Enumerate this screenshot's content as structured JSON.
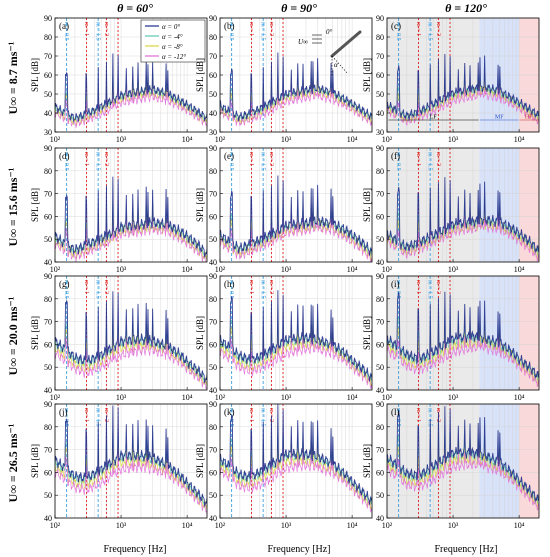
{
  "figure": {
    "column_titles": [
      "θ = 60°",
      "θ = 90°",
      "θ = 120°"
    ],
    "row_labels": [
      "U∞ = 8.7 ms⁻¹",
      "U∞ = 15.6 ms⁻¹",
      "U∞ = 20.0 ms⁻¹",
      "U∞ = 26.5 ms⁻¹"
    ],
    "panel_labels": [
      "(a)",
      "(b)",
      "(c)",
      "(d)",
      "(e)",
      "(f)",
      "(g)",
      "(h)",
      "(i)",
      "(j)",
      "(k)",
      "(l)"
    ],
    "ylabel": "SPL [dB]",
    "xlabel": "Frequency [Hz]",
    "x_tick_labels": [
      "10²",
      "10³",
      "10⁴"
    ],
    "harmonic_labels": {
      "half": "m = 0.5",
      "one": "m = 1",
      "onehalf": "m = 1.5",
      "two": "m = 2"
    },
    "region_labels": [
      "LF",
      "MF",
      "HF"
    ],
    "inset": {
      "freestream": "U∞",
      "zero_angle": "0°",
      "angle": "α"
    }
  },
  "colors": {
    "alpha_0": "#1f2d8a",
    "alpha_m4": "#58c7a8",
    "alpha_m8": "#d8d43a",
    "alpha_m12": "#e06ad8",
    "half_harmonic": "#3c9ee0",
    "harmonic": "#e02020",
    "lf_region": "#d9d9d9",
    "mf_region": "#c8d6f5",
    "hf_region": "#f7c9c9"
  },
  "chart_data": {
    "type": "line",
    "x_scale": "log",
    "xlim": [
      100,
      20000
    ],
    "x_ticks": [
      100,
      1000,
      10000
    ],
    "legend": {
      "placement": "top-right of panel (a)",
      "entries": [
        "α = 0°",
        "α = -4°",
        "α = -8°",
        "α = -12°"
      ]
    },
    "grid": true,
    "rows": [
      {
        "label": "U∞ = 8.7 ms⁻¹",
        "ylim": [
          30,
          90
        ],
        "y_ticks": [
          30,
          40,
          50,
          60,
          70,
          80,
          90
        ],
        "harmonics_hz": {
          "m = 0.5": 150,
          "m = 1": 300,
          "m = 1.5": 450,
          "m = 2": 600
        },
        "spike_base_hz": 150
      },
      {
        "label": "U∞ = 15.6 ms⁻¹",
        "ylim": [
          40,
          90
        ],
        "y_ticks": [
          40,
          50,
          60,
          70,
          80,
          90
        ],
        "harmonics_hz": {
          "m = 0.5": 150,
          "m = 1": 300,
          "m = 1.5": 450,
          "m = 2": 600
        },
        "spike_base_hz": 150
      },
      {
        "label": "U∞ = 20.0 ms⁻¹",
        "ylim": [
          40,
          90
        ],
        "y_ticks": [
          40,
          50,
          60,
          70,
          80,
          90
        ],
        "harmonics_hz": {
          "m = 0.5": 150,
          "m = 1": 300,
          "m = 1.5": 450,
          "m = 2": 600
        },
        "spike_base_hz": 150
      },
      {
        "label": "U∞ = 26.5 ms⁻¹",
        "ylim": [
          40,
          90
        ],
        "y_ticks": [
          40,
          50,
          60,
          70,
          80,
          90
        ],
        "harmonics_hz": {
          "m = 0.5": 150,
          "m = 1": 300,
          "m = 1.5": 450,
          "m = 2": 600
        },
        "spike_base_hz": 150
      }
    ],
    "series": [
      {
        "name": "α = 0°",
        "color": "#1f2d8a",
        "rows": [
          {
            "x": [
              100,
              150,
              200,
              300,
              500,
              800,
              1000,
              2000,
              3000,
              5000,
              8000,
              10000,
              15000,
              20000
            ],
            "y": [
              44,
              40,
              38,
              40,
              44,
              48,
              50,
              52,
              53,
              51,
              47,
              45,
              41,
              38
            ]
          },
          {
            "x": [
              100,
              150,
              200,
              300,
              500,
              800,
              1000,
              2000,
              3000,
              5000,
              8000,
              10000,
              15000,
              20000
            ],
            "y": [
              52,
              48,
              46,
              48,
              51,
              54,
              56,
              57,
              58,
              57,
              54,
              52,
              48,
              44
            ]
          },
          {
            "x": [
              100,
              150,
              200,
              300,
              500,
              800,
              1000,
              2000,
              3000,
              5000,
              8000,
              10000,
              15000,
              20000
            ],
            "y": [
              62,
              58,
              55,
              53,
              56,
              60,
              62,
              63,
              62,
              60,
              56,
              53,
              49,
              45
            ]
          },
          {
            "x": [
              100,
              150,
              200,
              300,
              500,
              800,
              1000,
              2000,
              3000,
              5000,
              8000,
              10000,
              15000,
              20000
            ],
            "y": [
              66,
              62,
              59,
              58,
              62,
              66,
              68,
              68,
              67,
              64,
              59,
              56,
              51,
              47
            ]
          }
        ]
      },
      {
        "name": "α = -4°",
        "color": "#58c7a8",
        "rows": [
          {
            "x": [
              100,
              150,
              200,
              300,
              500,
              800,
              1000,
              2000,
              3000,
              5000,
              8000,
              10000,
              15000,
              20000
            ],
            "y": [
              43,
              39,
              37,
              39,
              43,
              47,
              49,
              51,
              52,
              50,
              46,
              44,
              40,
              37
            ]
          },
          {
            "x": [
              100,
              150,
              200,
              300,
              500,
              800,
              1000,
              2000,
              3000,
              5000,
              8000,
              10000,
              15000,
              20000
            ],
            "y": [
              51,
              47,
              45,
              47,
              50,
              53,
              55,
              56,
              57,
              56,
              53,
              51,
              47,
              43
            ]
          },
          {
            "x": [
              100,
              150,
              200,
              300,
              500,
              800,
              1000,
              2000,
              3000,
              5000,
              8000,
              10000,
              15000,
              20000
            ],
            "y": [
              61,
              57,
              54,
              52,
              55,
              59,
              61,
              62,
              61,
              59,
              55,
              52,
              48,
              44
            ]
          },
          {
            "x": [
              100,
              150,
              200,
              300,
              500,
              800,
              1000,
              2000,
              3000,
              5000,
              8000,
              10000,
              15000,
              20000
            ],
            "y": [
              65,
              61,
              58,
              57,
              61,
              65,
              67,
              67,
              66,
              63,
              58,
              55,
              50,
              46
            ]
          }
        ]
      },
      {
        "name": "α = -8°",
        "color": "#d8d43a",
        "rows": [
          {
            "x": [
              100,
              150,
              200,
              300,
              500,
              800,
              1000,
              2000,
              3000,
              5000,
              8000,
              10000,
              15000,
              20000
            ],
            "y": [
              42,
              38,
              36,
              38,
              42,
              46,
              48,
              50,
              51,
              49,
              45,
              43,
              39,
              36
            ]
          },
          {
            "x": [
              100,
              150,
              200,
              300,
              500,
              800,
              1000,
              2000,
              3000,
              5000,
              8000,
              10000,
              15000,
              20000
            ],
            "y": [
              50,
              46,
              44,
              46,
              49,
              52,
              54,
              55,
              56,
              55,
              52,
              50,
              46,
              42
            ]
          },
          {
            "x": [
              100,
              150,
              200,
              300,
              500,
              800,
              1000,
              2000,
              3000,
              5000,
              8000,
              10000,
              15000,
              20000
            ],
            "y": [
              59,
              55,
              52,
              50,
              53,
              57,
              59,
              60,
              60,
              58,
              54,
              51,
              47,
              43
            ]
          },
          {
            "x": [
              100,
              150,
              200,
              300,
              500,
              800,
              1000,
              2000,
              3000,
              5000,
              8000,
              10000,
              15000,
              20000
            ],
            "y": [
              63,
              59,
              56,
              55,
              59,
              63,
              65,
              65,
              64,
              61,
              57,
              54,
              49,
              45
            ]
          }
        ]
      },
      {
        "name": "α = -12°",
        "color": "#e06ad8",
        "rows": [
          {
            "x": [
              100,
              150,
              200,
              300,
              500,
              800,
              1000,
              2000,
              3000,
              5000,
              8000,
              10000,
              15000,
              20000
            ],
            "y": [
              41,
              37,
              35,
              37,
              40,
              44,
              46,
              48,
              49,
              47,
              44,
              42,
              38,
              35
            ]
          },
          {
            "x": [
              100,
              150,
              200,
              300,
              500,
              800,
              1000,
              2000,
              3000,
              5000,
              8000,
              10000,
              15000,
              20000
            ],
            "y": [
              49,
              45,
              43,
              45,
              48,
              51,
              53,
              54,
              55,
              54,
              51,
              49,
              45,
              41
            ]
          },
          {
            "x": [
              100,
              150,
              200,
              300,
              500,
              800,
              1000,
              2000,
              3000,
              5000,
              8000,
              10000,
              15000,
              20000
            ],
            "y": [
              57,
              53,
              50,
              48,
              51,
              54,
              56,
              58,
              58,
              56,
              53,
              50,
              46,
              42
            ]
          },
          {
            "x": [
              100,
              150,
              200,
              300,
              500,
              800,
              1000,
              2000,
              3000,
              5000,
              8000,
              10000,
              15000,
              20000
            ],
            "y": [
              61,
              57,
              54,
              53,
              56,
              60,
              62,
              63,
              62,
              60,
              56,
              53,
              48,
              44
            ]
          }
        ]
      }
    ]
  }
}
